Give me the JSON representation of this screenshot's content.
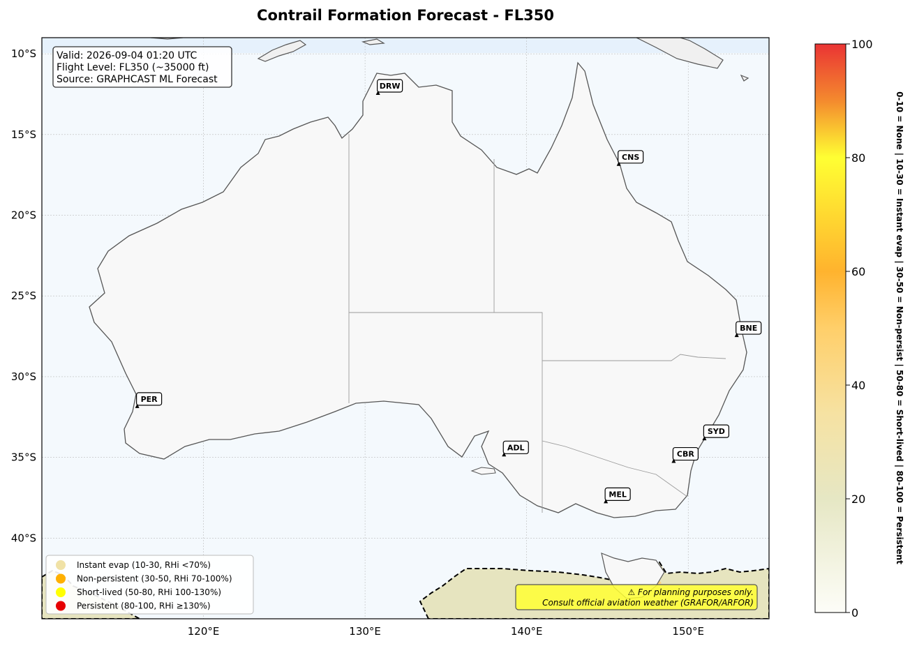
{
  "title": "Contrail Formation Forecast - FL350",
  "info": {
    "valid": "Valid: 2026-09-04 01:20 UTC",
    "flight_level": "Flight Level: FL350 (~35000 ft)",
    "source": "Source: GRAPHCAST ML Forecast"
  },
  "map_extent": {
    "lon": [
      110,
      155
    ],
    "lat": [
      -45,
      -9
    ]
  },
  "lat_ticks": [
    {
      "value": -10,
      "label": "10°S"
    },
    {
      "value": -15,
      "label": "15°S"
    },
    {
      "value": -20,
      "label": "20°S"
    },
    {
      "value": -25,
      "label": "25°S"
    },
    {
      "value": -30,
      "label": "30°S"
    },
    {
      "value": -35,
      "label": "35°S"
    },
    {
      "value": -40,
      "label": "40°S"
    }
  ],
  "lon_ticks": [
    {
      "value": 120,
      "label": "120°E"
    },
    {
      "value": 130,
      "label": "130°E"
    },
    {
      "value": 140,
      "label": "140°E"
    },
    {
      "value": 150,
      "label": "150°E"
    }
  ],
  "cities": [
    {
      "code": "DRW",
      "lon": 130.8,
      "lat": -12.5
    },
    {
      "code": "CNS",
      "lon": 145.7,
      "lat": -16.9
    },
    {
      "code": "BNE",
      "lon": 153.0,
      "lat": -27.5
    },
    {
      "code": "PER",
      "lon": 115.9,
      "lat": -31.9
    },
    {
      "code": "SYD",
      "lon": 151.0,
      "lat": -33.9
    },
    {
      "code": "ADL",
      "lon": 138.6,
      "lat": -34.9
    },
    {
      "code": "CBR",
      "lon": 149.1,
      "lat": -35.3
    },
    {
      "code": "MEL",
      "lon": 144.9,
      "lat": -37.8
    }
  ],
  "legend": [
    {
      "label": "Instant evap (10-30, RHi <70%)",
      "color": "#f0e2a6"
    },
    {
      "label": "Non-persistent (30-50, RHi 70-100%)",
      "color": "#ffb000"
    },
    {
      "label": "Short-lived (50-80, RHi 100-130%)",
      "color": "#ffff00"
    },
    {
      "label": "Persistent (80-100, RHi ≥130%)",
      "color": "#e60000"
    }
  ],
  "warning": {
    "line1": "⚠ For planning purposes only.",
    "line2": "Consult official aviation weather (GRAFOR/ARFOR)"
  },
  "colorbar": {
    "range": [
      0,
      100
    ],
    "ticks": [
      "0",
      "20",
      "40",
      "60",
      "80",
      "100"
    ],
    "side_label": "0-10 = None  |  10-30 = Instant evap  |  30-50 = Non-persist  |  50-80 = Short-lived  |  80-100 = Persistent"
  },
  "colors": {
    "ocean": "#f4f9fd",
    "land": "#f8f8f8",
    "coast": "#555555",
    "contrail_zone": "#e6e4bf",
    "warning_bg": "#ffff33"
  }
}
